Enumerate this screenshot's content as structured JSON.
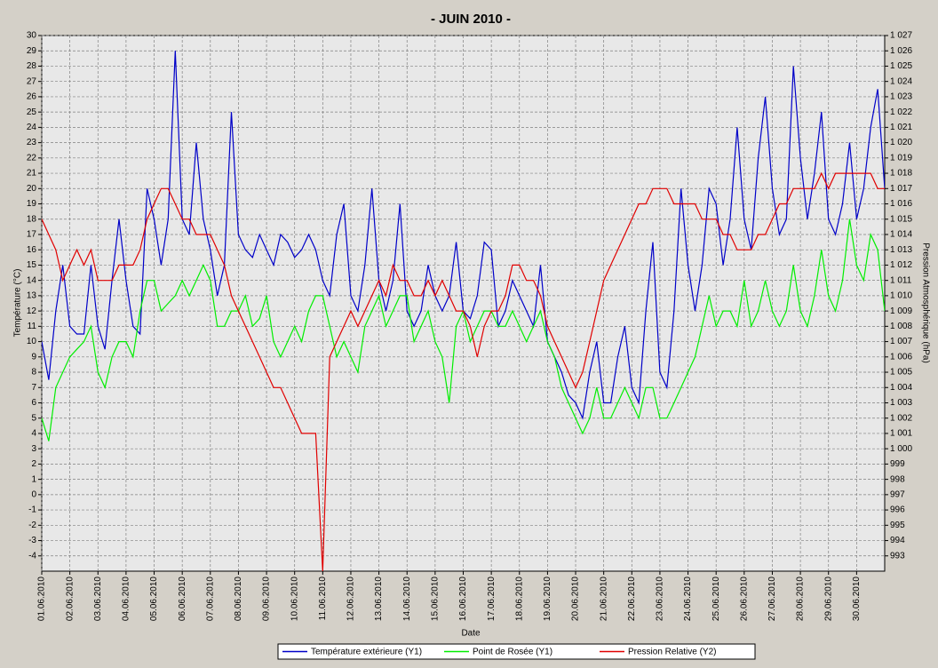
{
  "chart_data": {
    "type": "line",
    "title": "- JUIN  2010  -",
    "xlabel": "Date",
    "ylabel": "Température (°C)",
    "y2label": "Pression Atmosphérique (hPa)",
    "grid": true,
    "xlim": [
      0,
      30
    ],
    "xticks": [
      {
        "value": 0,
        "label": "01.06.2010"
      },
      {
        "value": 1,
        "label": "02.06.2010"
      },
      {
        "value": 2,
        "label": "03.06.2010"
      },
      {
        "value": 3,
        "label": "04.06.2010"
      },
      {
        "value": 4,
        "label": "05.06.2010"
      },
      {
        "value": 5,
        "label": "06.06.2010"
      },
      {
        "value": 6,
        "label": "07.06.2010"
      },
      {
        "value": 7,
        "label": "08.06.2010"
      },
      {
        "value": 8,
        "label": "09.06.2010"
      },
      {
        "value": 9,
        "label": "10.06.2010"
      },
      {
        "value": 10,
        "label": "11.06.2010"
      },
      {
        "value": 11,
        "label": "12.06.2010"
      },
      {
        "value": 12,
        "label": "13.06.2010"
      },
      {
        "value": 13,
        "label": "14.06.2010"
      },
      {
        "value": 14,
        "label": "15.06.2010"
      },
      {
        "value": 15,
        "label": "16.06.2010"
      },
      {
        "value": 16,
        "label": "17.06.2010"
      },
      {
        "value": 17,
        "label": "18.06.2010"
      },
      {
        "value": 18,
        "label": "19.06.2010"
      },
      {
        "value": 19,
        "label": "20.06.2010"
      },
      {
        "value": 20,
        "label": "21.06.2010"
      },
      {
        "value": 21,
        "label": "22.06.2010"
      },
      {
        "value": 22,
        "label": "23.06.2010"
      },
      {
        "value": 23,
        "label": "24.06.2010"
      },
      {
        "value": 24,
        "label": "25.06.2010"
      },
      {
        "value": 25,
        "label": "26.06.2010"
      },
      {
        "value": 26,
        "label": "27.06.2010"
      },
      {
        "value": 27,
        "label": "28.06.2010"
      },
      {
        "value": 28,
        "label": "29.06.2010"
      },
      {
        "value": 29,
        "label": "30.06.2010"
      }
    ],
    "ylim": [
      -5,
      30
    ],
    "yticks": [
      -4,
      -3,
      -2,
      -1,
      0,
      1,
      2,
      3,
      4,
      5,
      6,
      7,
      8,
      9,
      10,
      11,
      12,
      13,
      14,
      15,
      16,
      17,
      18,
      19,
      20,
      21,
      22,
      23,
      24,
      25,
      26,
      27,
      28,
      29,
      30
    ],
    "y2lim": [
      992,
      1027
    ],
    "y2ticks": [
      993,
      994,
      995,
      996,
      997,
      998,
      999,
      {
        "value": 1000,
        "label": "1 000"
      },
      {
        "value": 1001,
        "label": "1 001"
      },
      {
        "value": 1002,
        "label": "1 002"
      },
      {
        "value": 1003,
        "label": "1 003"
      },
      {
        "value": 1004,
        "label": "1 004"
      },
      {
        "value": 1005,
        "label": "1 005"
      },
      {
        "value": 1006,
        "label": "1 006"
      },
      {
        "value": 1007,
        "label": "1 007"
      },
      {
        "value": 1008,
        "label": "1 008"
      },
      {
        "value": 1009,
        "label": "1 009"
      },
      {
        "value": 1010,
        "label": "1 010"
      },
      {
        "value": 1011,
        "label": "1 011"
      },
      {
        "value": 1012,
        "label": "1 012"
      },
      {
        "value": 1013,
        "label": "1 013"
      },
      {
        "value": 1014,
        "label": "1 014"
      },
      {
        "value": 1015,
        "label": "1 015"
      },
      {
        "value": 1016,
        "label": "1 016"
      },
      {
        "value": 1017,
        "label": "1 017"
      },
      {
        "value": 1018,
        "label": "1 018"
      },
      {
        "value": 1019,
        "label": "1 019"
      },
      {
        "value": 1020,
        "label": "1 020"
      },
      {
        "value": 1021,
        "label": "1 021"
      },
      {
        "value": 1022,
        "label": "1 022"
      },
      {
        "value": 1023,
        "label": "1 023"
      },
      {
        "value": 1024,
        "label": "1 024"
      },
      {
        "value": 1025,
        "label": "1 025"
      },
      {
        "value": 1026,
        "label": "1 026"
      },
      {
        "value": 1027,
        "label": "1 027"
      }
    ],
    "x": [
      0,
      0.25,
      0.5,
      0.75,
      1,
      1.25,
      1.5,
      1.75,
      2,
      2.25,
      2.5,
      2.75,
      3,
      3.25,
      3.5,
      3.75,
      4,
      4.25,
      4.5,
      4.75,
      5,
      5.25,
      5.5,
      5.75,
      6,
      6.25,
      6.5,
      6.75,
      7,
      7.25,
      7.5,
      7.75,
      8,
      8.25,
      8.5,
      8.75,
      9,
      9.25,
      9.5,
      9.75,
      10,
      10.25,
      10.5,
      10.75,
      11,
      11.25,
      11.5,
      11.75,
      12,
      12.25,
      12.5,
      12.75,
      13,
      13.25,
      13.5,
      13.75,
      14,
      14.25,
      14.5,
      14.75,
      15,
      15.25,
      15.5,
      15.75,
      16,
      16.25,
      16.5,
      16.75,
      17,
      17.25,
      17.5,
      17.75,
      18,
      18.25,
      18.5,
      18.75,
      19,
      19.25,
      19.5,
      19.75,
      20,
      20.25,
      20.5,
      20.75,
      21,
      21.25,
      21.5,
      21.75,
      22,
      22.25,
      22.5,
      22.75,
      23,
      23.25,
      23.5,
      23.75,
      24,
      24.25,
      24.5,
      24.75,
      25,
      25.25,
      25.5,
      25.75,
      26,
      26.25,
      26.5,
      26.75,
      27,
      27.25,
      27.5,
      27.75,
      28,
      28.25,
      28.5,
      28.75,
      29,
      29.25,
      29.5,
      29.75,
      30
    ],
    "series": [
      {
        "name": "Température extérieure (Y1)",
        "color": "#0000c8",
        "values": [
          10,
          7.5,
          12,
          15,
          11,
          10.5,
          10.5,
          15,
          11,
          9.5,
          14,
          18,
          14,
          11,
          10.5,
          20,
          18,
          15,
          18,
          29,
          18,
          17,
          23,
          18,
          16,
          13,
          15,
          25,
          17,
          16,
          15.5,
          17,
          16,
          15,
          17,
          16.5,
          15.5,
          16,
          17,
          16,
          14,
          13,
          17,
          19,
          13,
          12,
          15,
          20,
          14,
          12,
          14,
          19,
          12,
          11,
          12,
          15,
          13,
          12,
          13,
          16.5,
          12,
          11.5,
          13,
          16.5,
          16,
          11,
          12,
          14,
          13,
          12,
          11,
          15,
          10,
          9,
          8,
          6.5,
          6,
          5,
          8,
          10,
          6,
          6,
          9,
          11,
          7,
          6,
          12,
          16.5,
          8,
          7,
          12,
          20,
          15,
          12,
          15,
          20,
          19,
          15,
          18,
          24,
          18,
          16,
          22,
          26,
          20,
          17,
          18,
          28,
          22,
          18,
          21,
          25,
          18,
          17,
          19,
          23,
          18,
          20,
          24,
          26.5,
          20
        ]
      },
      {
        "name": "Point de Rosée (Y1)",
        "color": "#00ee00",
        "values": [
          5,
          3.5,
          7,
          8,
          9,
          9.5,
          10,
          11,
          8,
          7,
          9,
          10,
          10,
          9,
          12,
          14,
          14,
          12,
          12.5,
          13,
          14,
          13,
          14,
          15,
          14,
          11,
          11,
          12,
          12,
          13,
          11,
          11.5,
          13,
          10,
          9,
          10,
          11,
          10,
          12,
          13,
          13,
          11,
          9,
          10,
          9,
          8,
          11,
          12,
          13,
          11,
          12,
          13,
          13,
          10,
          11,
          12,
          10,
          9,
          6,
          11,
          12,
          10,
          11,
          12,
          12,
          11,
          11,
          12,
          11,
          10,
          11,
          12,
          10,
          9,
          7,
          6,
          5,
          4,
          5,
          7,
          5,
          5,
          6,
          7,
          6,
          5,
          7,
          7,
          5,
          5,
          6,
          7,
          8,
          9,
          11,
          13,
          11,
          12,
          12,
          11,
          14,
          11,
          12,
          14,
          12,
          11,
          12,
          15,
          12,
          11,
          13,
          16,
          13,
          12,
          14,
          18,
          15,
          14,
          17,
          16,
          12
        ]
      },
      {
        "name": "Pression Relative (Y2)",
        "color": "#e00000",
        "axis": "y2",
        "values": [
          1015,
          1014,
          1013,
          1011,
          1012,
          1013,
          1012,
          1013,
          1011,
          1011,
          1011,
          1012,
          1012,
          1012,
          1013,
          1015,
          1016,
          1017,
          1017,
          1016,
          1015,
          1015,
          1014,
          1014,
          1014,
          1013,
          1012,
          1010,
          1009,
          1008,
          1007,
          1006,
          1005,
          1004,
          1004,
          1003,
          1002,
          1001,
          1001,
          1001,
          992,
          1006,
          1007,
          1008,
          1009,
          1008,
          1009,
          1010,
          1011,
          1010,
          1012,
          1011,
          1011,
          1010,
          1010,
          1011,
          1010,
          1011,
          1010,
          1009,
          1009,
          1008,
          1006,
          1008,
          1009,
          1009,
          1010,
          1012,
          1012,
          1011,
          1011,
          1010,
          1008,
          1007,
          1006,
          1005,
          1004,
          1005,
          1007,
          1009,
          1011,
          1012,
          1013,
          1014,
          1015,
          1016,
          1016,
          1017,
          1017,
          1017,
          1016,
          1016,
          1016,
          1016,
          1015,
          1015,
          1015,
          1014,
          1014,
          1013,
          1013,
          1013,
          1014,
          1014,
          1015,
          1016,
          1016,
          1017,
          1017,
          1017,
          1017,
          1018,
          1017,
          1018,
          1018,
          1018,
          1018,
          1018,
          1018,
          1017,
          1017
        ]
      }
    ]
  }
}
